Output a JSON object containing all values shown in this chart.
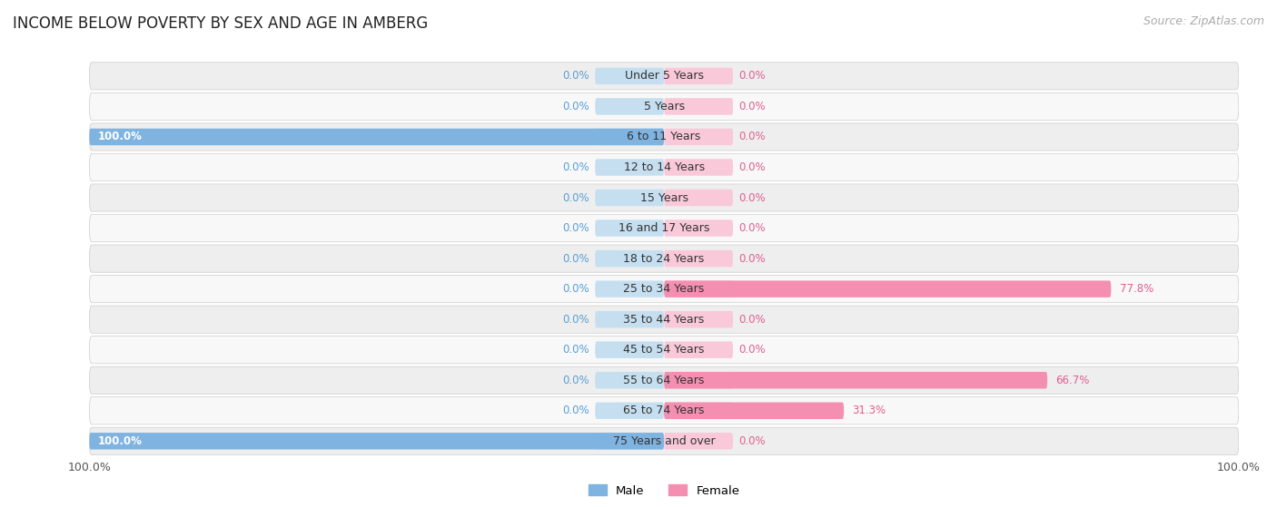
{
  "title": "INCOME BELOW POVERTY BY SEX AND AGE IN AMBERG",
  "source": "Source: ZipAtlas.com",
  "categories": [
    "Under 5 Years",
    "5 Years",
    "6 to 11 Years",
    "12 to 14 Years",
    "15 Years",
    "16 and 17 Years",
    "18 to 24 Years",
    "25 to 34 Years",
    "35 to 44 Years",
    "45 to 54 Years",
    "55 to 64 Years",
    "65 to 74 Years",
    "75 Years and over"
  ],
  "male_values": [
    0.0,
    0.0,
    100.0,
    0.0,
    0.0,
    0.0,
    0.0,
    0.0,
    0.0,
    0.0,
    0.0,
    0.0,
    100.0
  ],
  "female_values": [
    0.0,
    0.0,
    0.0,
    0.0,
    0.0,
    0.0,
    0.0,
    77.8,
    0.0,
    0.0,
    66.7,
    31.3,
    0.0
  ],
  "male_color": "#7fb3e0",
  "female_color": "#f48fb1",
  "male_bg_color": "#c5dff0",
  "female_bg_color": "#f9c9d9",
  "male_label": "Male",
  "female_label": "Female",
  "male_text_color": "#5a9fd4",
  "female_text_color": "#e06090",
  "row_bg_light": "#eeeeee",
  "row_bg_white": "#f8f8f8",
  "xlim": 100.0,
  "bar_height": 0.55,
  "title_fontsize": 12,
  "label_fontsize": 9.5,
  "tick_fontsize": 9,
  "category_fontsize": 9,
  "source_fontsize": 9,
  "value_fontsize": 8.5
}
